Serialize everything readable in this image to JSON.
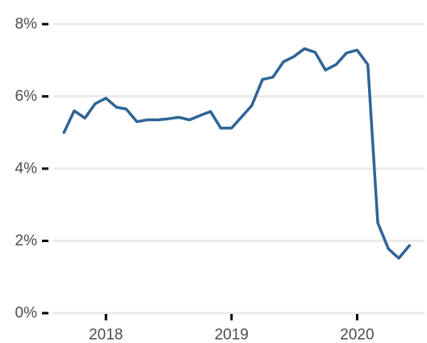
{
  "chart_data": {
    "type": "line",
    "title": "",
    "xlabel": "",
    "ylabel": "",
    "x_axis": {
      "ticks": [
        "2018-01-01",
        "2019-01-01",
        "2020-01-01"
      ],
      "tick_labels": [
        "2018",
        "2019",
        "2020"
      ],
      "range": [
        "2017-08-01",
        "2020-07-15"
      ]
    },
    "y_axis": {
      "ticks": [
        0,
        2,
        4,
        6,
        8
      ],
      "tick_labels": [
        "0%",
        "2%",
        "4%",
        "6%",
        "8%"
      ],
      "unit": "percent",
      "range": [
        0,
        8.4
      ]
    },
    "grid": true,
    "legend": "none",
    "line_color": "#2f6496",
    "series": [
      {
        "x": [
          "2017-09-01",
          "2017-10-01",
          "2017-11-01",
          "2017-12-01",
          "2018-01-01",
          "2018-02-01",
          "2018-03-01",
          "2018-04-01",
          "2018-05-01",
          "2018-06-01",
          "2018-07-01",
          "2018-08-01",
          "2018-09-01",
          "2018-10-01",
          "2018-11-01",
          "2018-12-01",
          "2019-01-01",
          "2019-02-01",
          "2019-03-01",
          "2019-04-01",
          "2019-05-01",
          "2019-06-01",
          "2019-07-01",
          "2019-08-01",
          "2019-09-01",
          "2019-10-01",
          "2019-11-01",
          "2019-12-01",
          "2020-01-01",
          "2020-02-01",
          "2020-03-01",
          "2020-04-01",
          "2020-05-01",
          "2020-06-01"
        ],
        "values": [
          5.0,
          5.6,
          5.4,
          5.8,
          5.95,
          5.7,
          5.65,
          5.3,
          5.35,
          5.35,
          5.38,
          5.42,
          5.35,
          5.47,
          5.58,
          5.12,
          5.12,
          5.45,
          5.75,
          6.47,
          6.53,
          6.96,
          7.1,
          7.32,
          7.22,
          6.73,
          6.88,
          7.2,
          7.28,
          6.88,
          2.5,
          1.78,
          1.52,
          1.87
        ]
      }
    ]
  }
}
